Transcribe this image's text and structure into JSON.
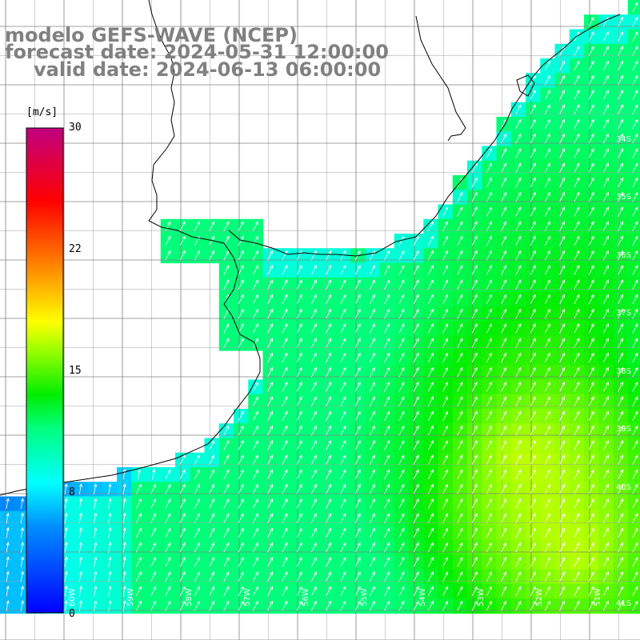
{
  "title": {
    "line1": "modelo GEFS-WAVE (NCEP)",
    "line2": "forecast date: 2024-05-31 12:00:00",
    "line3": "valid date: 2024-06-13 06:00:00"
  },
  "colorbar": {
    "unit": "[m/s]",
    "ticks": [
      "30",
      "22",
      "15",
      "8",
      "0"
    ],
    "tick_values": [
      30,
      22,
      15,
      8,
      0
    ],
    "vmin": 0,
    "vmax": 30,
    "colors": [
      "#0000ff",
      "#00c8ff",
      "#00ffff",
      "#00ff00",
      "#ffff00",
      "#ff8000",
      "#ff0000",
      "#c00080"
    ]
  },
  "map": {
    "region": "South Atlantic off Uruguay / southern Brazil",
    "lat_labels": [
      "34S",
      "35S",
      "36S",
      "37S",
      "38S",
      "39S",
      "40S",
      "41S"
    ],
    "lon_labels": [
      "60W",
      "59W",
      "58W",
      "57W",
      "56W",
      "55W",
      "54W",
      "53W",
      "52W",
      "51W"
    ],
    "wind_direction": "from south-southwest",
    "land_color": "#ffffff",
    "grid_color": "#808080",
    "coast_color": "#000000",
    "arrow_color": "#ffffff"
  }
}
